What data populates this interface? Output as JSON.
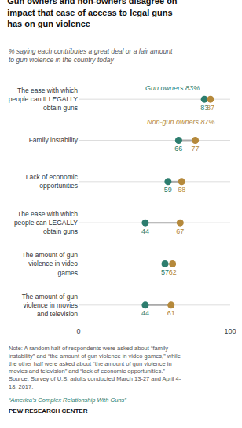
{
  "chart_data": {
    "type": "dumbbell",
    "title": "Gun owners and non-owners disagree on\nimpact that ease of access to legal guns\nhas on gun violence",
    "subtitle": "% saying each contributes a great deal or a fair amount\nto gun violence in the country today",
    "categories": [
      "The ease with which\npeople can ILLEGALLY\nobtain guns",
      "Family instability",
      "Lack of economic\nopportunities",
      "The ease with which\npeople can LEGALLY\nobtain guns",
      "The amount of gun\nviolence in video\ngames",
      "The amount of gun\nviolence in movies\nand television"
    ],
    "series": [
      {
        "name": "Gun owners 83%",
        "color": "#2d7d6e",
        "values": [
          83,
          66,
          59,
          44,
          57,
          44
        ]
      },
      {
        "name": "Non-gun owners 87%",
        "color": "#b5893b",
        "values": [
          87,
          77,
          68,
          67,
          62,
          61
        ]
      }
    ],
    "xlim": [
      0,
      100
    ],
    "xticks": [
      0,
      100
    ],
    "grid": true,
    "data_labels": true,
    "annotations": [
      "Note: A random half of respondents were asked about “family\ninstability” and “the amount of gun violence in video games,” while\nthe other half were asked about “the amount of gun violence in\nmovies and television” and “lack of economic opportunities.”\nSource: Survey of U.S. adults conducted March 13-27 and April 4-\n18, 2017.",
      "“America’s Complex Relationship With Guns”",
      "PEW RESEARCH CENTER"
    ]
  }
}
